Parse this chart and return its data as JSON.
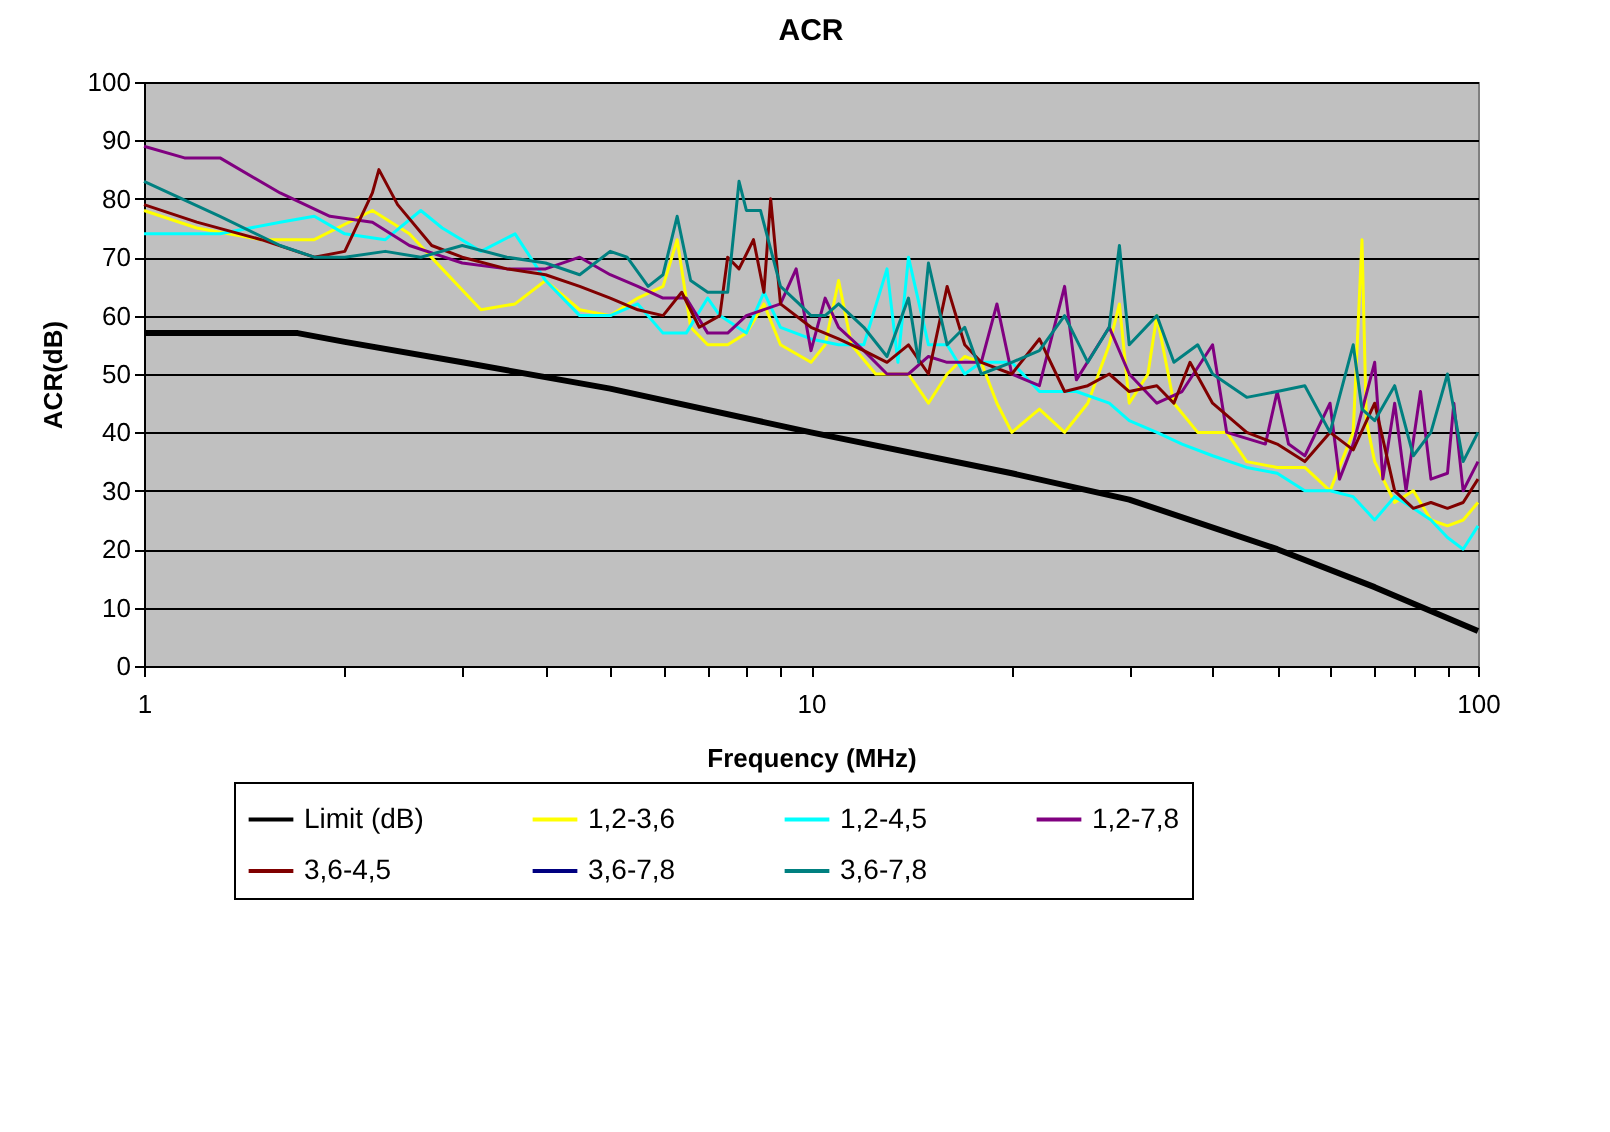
{
  "chart_data": {
    "type": "line",
    "title": "ACR",
    "xlabel": "Frequency (MHz)",
    "ylabel": "ACR(dB)",
    "log": "x",
    "grid": "y",
    "legend": "bottom",
    "xlim": [
      1,
      100
    ],
    "xticks": [
      1,
      {
        "value": 2,
        "label": null
      },
      {
        "value": 3,
        "label": null
      },
      {
        "value": 4,
        "label": null
      },
      {
        "value": 5,
        "label": null
      },
      {
        "value": 6,
        "label": null
      },
      {
        "value": 7,
        "label": null
      },
      {
        "value": 8,
        "label": null
      },
      {
        "value": 9,
        "label": null
      },
      10,
      {
        "value": 20,
        "label": null
      },
      {
        "value": 30,
        "label": null
      },
      {
        "value": 40,
        "label": null
      },
      {
        "value": 50,
        "label": null
      },
      {
        "value": 60,
        "label": null
      },
      {
        "value": 70,
        "label": null
      },
      {
        "value": 80,
        "label": null
      },
      {
        "value": 90,
        "label": null
      },
      100
    ],
    "ylim": [
      0,
      100
    ],
    "yticks": [
      0,
      10,
      20,
      30,
      40,
      50,
      60,
      70,
      80,
      90,
      100
    ],
    "series": [
      {
        "name": "Limit (dB)",
        "color": "#000000",
        "x": [
          1,
          1.7,
          2,
          3,
          5,
          10,
          20,
          30,
          50,
          70,
          100
        ],
        "values": [
          57,
          57,
          55.5,
          52,
          47.5,
          40,
          33,
          28.5,
          20,
          13.5,
          6
        ]
      },
      {
        "name": "1,2-3,6",
        "color": "#ffff00",
        "x": [
          1,
          1.2,
          1.5,
          1.8,
          2.2,
          2.5,
          2.8,
          3.2,
          3.6,
          4,
          4.5,
          5,
          5.5,
          6,
          6.3,
          6.6,
          7,
          7.5,
          8,
          8.5,
          9,
          10,
          10.5,
          11,
          11.5,
          12.5,
          14,
          15,
          16,
          17,
          18,
          19,
          20,
          22,
          24,
          26,
          28,
          29,
          30,
          32,
          33,
          35,
          38,
          42,
          45,
          50,
          55,
          60,
          65,
          67,
          68,
          70,
          75,
          80,
          85,
          90,
          95,
          100
        ],
        "values": [
          78,
          75,
          73,
          73,
          78,
          74,
          68,
          61,
          62,
          66,
          61,
          60,
          63,
          65,
          73,
          58,
          55,
          55,
          57,
          62,
          55,
          52,
          55,
          66,
          55,
          50,
          50,
          45,
          50,
          53,
          52,
          45,
          40,
          44,
          40,
          45,
          55,
          62,
          45,
          50,
          60,
          45,
          40,
          40,
          35,
          34,
          34,
          30,
          40,
          73,
          42,
          35,
          28,
          30,
          25,
          24,
          25,
          28
        ]
      },
      {
        "name": "1,2-4,5",
        "color": "#00ffff",
        "x": [
          1,
          1.3,
          1.6,
          1.8,
          2,
          2.3,
          2.6,
          2.8,
          3.2,
          3.6,
          4,
          4.5,
          5,
          5.5,
          6,
          6.5,
          7,
          7.3,
          8,
          8.5,
          9,
          10,
          11,
          12,
          13,
          13.5,
          14,
          15,
          16,
          17,
          18,
          20,
          22,
          25,
          28,
          30,
          33,
          36,
          40,
          45,
          50,
          55,
          60,
          65,
          70,
          75,
          80,
          85,
          90,
          95,
          100
        ],
        "values": [
          74,
          74,
          76,
          77,
          74,
          73,
          78,
          75,
          71,
          74,
          66,
          60,
          60,
          62,
          57,
          57,
          63,
          60,
          57,
          64,
          58,
          56,
          55,
          55,
          68,
          52,
          70,
          55,
          55,
          50,
          52,
          52,
          47,
          47,
          45,
          42,
          40,
          38,
          36,
          34,
          33,
          30,
          30,
          29,
          25,
          29,
          27,
          25,
          22,
          20,
          24
        ]
      },
      {
        "name": "1,2-7,8",
        "color": "#800080",
        "x": [
          1,
          1.15,
          1.3,
          1.6,
          1.9,
          2.2,
          2.5,
          3,
          3.5,
          4,
          4.5,
          5,
          5.5,
          6,
          6.5,
          7,
          7.5,
          8,
          9,
          9.5,
          10,
          10.5,
          11,
          12,
          13,
          14,
          15,
          16,
          18,
          19,
          20,
          22,
          24,
          25,
          28,
          30,
          33,
          36,
          40,
          42,
          48,
          50,
          52,
          55,
          60,
          62,
          65,
          70,
          72,
          75,
          78,
          82,
          85,
          90,
          92,
          95,
          100
        ],
        "values": [
          89,
          87,
          87,
          81,
          77,
          76,
          72,
          69,
          68,
          68,
          70,
          67,
          65,
          63,
          63,
          57,
          57,
          60,
          62,
          68,
          54,
          63,
          58,
          54,
          50,
          50,
          53,
          52,
          52,
          62,
          50,
          48,
          65,
          49,
          58,
          50,
          45,
          47,
          55,
          40,
          38,
          47,
          38,
          36,
          45,
          32,
          38,
          52,
          32,
          45,
          30,
          47,
          32,
          33,
          45,
          30,
          35
        ]
      },
      {
        "name": "3,6-4,5",
        "color": "#800000",
        "x": [
          1,
          1.2,
          1.5,
          1.8,
          2,
          2.2,
          2.25,
          2.4,
          2.7,
          3,
          3.5,
          4,
          4.5,
          5,
          5.5,
          6,
          6.4,
          6.8,
          7.3,
          7.5,
          7.8,
          8.2,
          8.5,
          8.7,
          9,
          10,
          11,
          12,
          13,
          14,
          15,
          16,
          17,
          18,
          20,
          22,
          24,
          26,
          28,
          30,
          33,
          35,
          37,
          40,
          45,
          50,
          55,
          60,
          65,
          70,
          75,
          80,
          85,
          90,
          95,
          100
        ],
        "values": [
          79,
          76,
          73,
          70,
          71,
          81,
          85,
          79,
          72,
          70,
          68,
          67,
          65,
          63,
          61,
          60,
          64,
          58,
          60,
          70,
          68,
          73,
          64,
          80,
          62,
          58,
          56,
          54,
          52,
          55,
          50,
          65,
          55,
          52,
          50,
          56,
          47,
          48,
          50,
          47,
          48,
          45,
          52,
          45,
          40,
          38,
          35,
          40,
          37,
          45,
          30,
          27,
          28,
          27,
          28,
          32
        ]
      },
      {
        "name": "3,6-7,8",
        "color": "#000080"
      },
      {
        "name": "3,6-7,8",
        "color": "#008080",
        "x": [
          1,
          1.3,
          1.6,
          1.8,
          2,
          2.3,
          2.6,
          3,
          3.5,
          4,
          4.5,
          5,
          5.3,
          5.7,
          6,
          6.3,
          6.6,
          7,
          7.5,
          7.8,
          8,
          8.4,
          9,
          9.6,
          10,
          10.5,
          11,
          12,
          13,
          14,
          14.5,
          15,
          16,
          17,
          18,
          20,
          22,
          24,
          26,
          28,
          29,
          30,
          33,
          35,
          38,
          40,
          45,
          50,
          55,
          60,
          65,
          67,
          70,
          75,
          80,
          85,
          90,
          95,
          100
        ],
        "values": [
          83,
          77,
          72,
          70,
          70,
          71,
          70,
          72,
          70,
          69,
          67,
          71,
          70,
          65,
          67,
          77,
          66,
          64,
          64,
          83,
          78,
          78,
          65,
          62,
          60,
          60,
          62,
          58,
          53,
          63,
          52,
          69,
          55,
          58,
          50,
          52,
          54,
          60,
          52,
          58,
          72,
          55,
          60,
          52,
          55,
          50,
          46,
          47,
          48,
          40,
          55,
          44,
          42,
          48,
          36,
          40,
          50,
          35,
          40
        ]
      }
    ]
  }
}
